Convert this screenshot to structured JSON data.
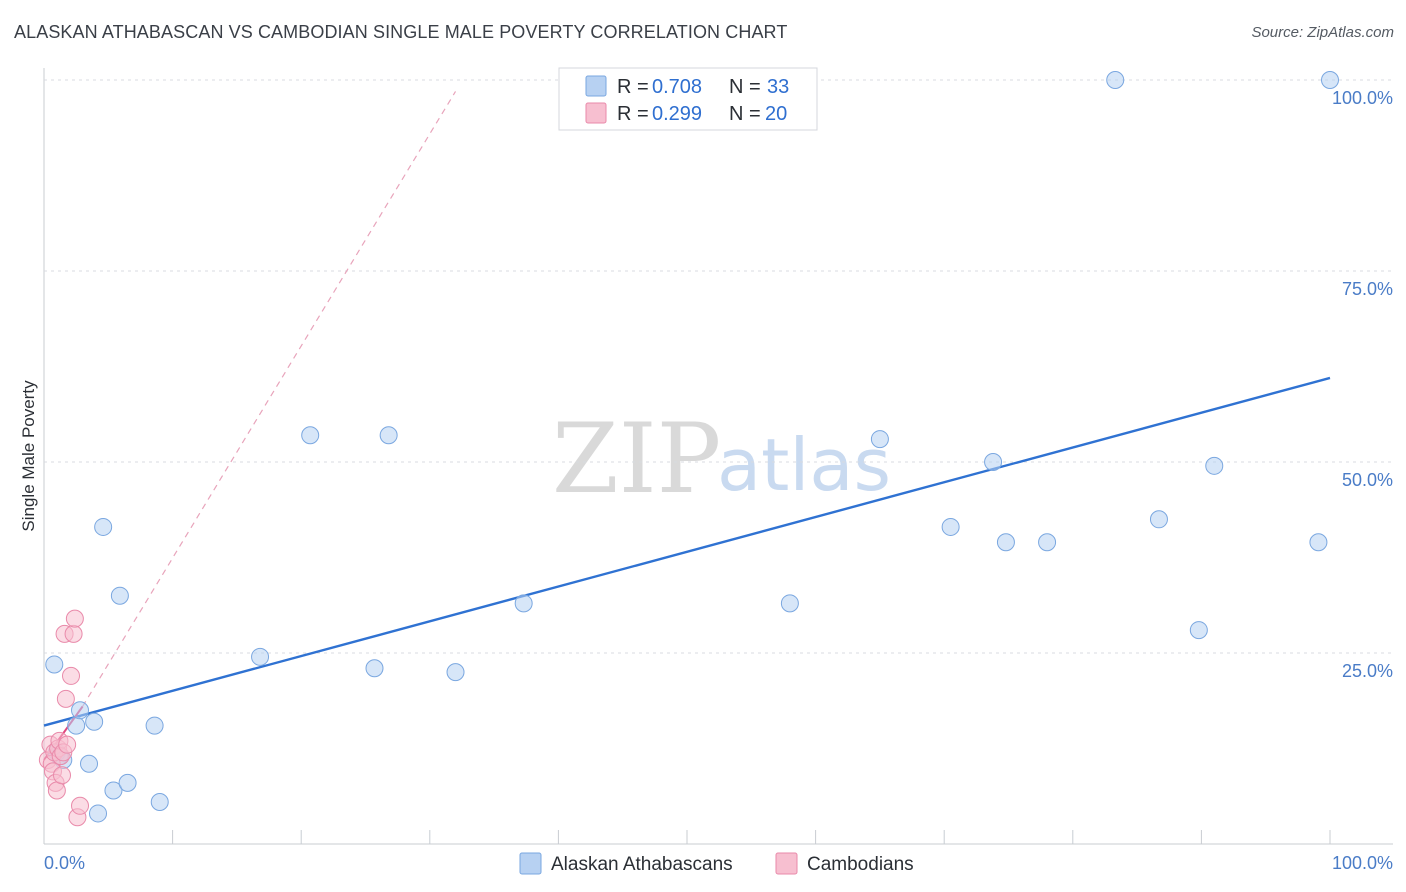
{
  "title": "ALASKAN ATHABASCAN VS CAMBODIAN SINGLE MALE POVERTY CORRELATION CHART",
  "source": "Source: ZipAtlas.com",
  "watermark": {
    "zip": "ZIP",
    "atlas": "atlas"
  },
  "legend": {
    "r_label": "R =",
    "n_label": "N =",
    "rows": [
      {
        "r": "0.708",
        "n": "33"
      },
      {
        "r": "0.299",
        "n": "20"
      }
    ]
  },
  "colors": {
    "blue_fill": "#b7d1f2",
    "blue_stroke": "#7aa7e0",
    "blue_line": "#2f72d2",
    "pink_fill": "#f7bfd0",
    "pink_stroke": "#e98aaa",
    "pink_line": "#e0477e",
    "tick_text": "#4a7cc7",
    "grid": "#d8dbe0"
  },
  "chart_data": {
    "type": "scatter",
    "title": "ALASKAN ATHABASCAN VS CAMBODIAN SINGLE MALE POVERTY CORRELATION CHART",
    "xlabel": "",
    "ylabel": "Single Male Poverty",
    "xlim": [
      0,
      100
    ],
    "ylim": [
      0,
      100
    ],
    "x_tick_labels": [
      "0.0%",
      "100.0%"
    ],
    "y_ticks": [
      {
        "value": 25,
        "label": "25.0%"
      },
      {
        "value": 50,
        "label": "50.0%"
      },
      {
        "value": 75,
        "label": "75.0%"
      },
      {
        "value": 100,
        "label": "100.0%"
      }
    ],
    "series": [
      {
        "name": "Alaskan Athabascans",
        "R": 0.708,
        "N": 33,
        "points": [
          [
            0.8,
            23.5
          ],
          [
            1.0,
            12.0
          ],
          [
            1.2,
            11.5
          ],
          [
            1.5,
            11.0
          ],
          [
            2.5,
            15.5
          ],
          [
            2.8,
            17.5
          ],
          [
            3.5,
            10.5
          ],
          [
            3.9,
            16.0
          ],
          [
            4.2,
            4.0
          ],
          [
            4.6,
            41.5
          ],
          [
            5.4,
            7.0
          ],
          [
            5.9,
            32.5
          ],
          [
            6.5,
            8.0
          ],
          [
            8.6,
            15.5
          ],
          [
            9.0,
            5.5
          ],
          [
            16.8,
            24.5
          ],
          [
            20.7,
            53.5
          ],
          [
            25.7,
            23.0
          ],
          [
            26.8,
            53.5
          ],
          [
            32.0,
            22.5
          ],
          [
            37.3,
            31.5
          ],
          [
            58.0,
            31.5
          ],
          [
            65.0,
            53.0
          ],
          [
            70.5,
            41.5
          ],
          [
            73.8,
            50.0
          ],
          [
            74.8,
            39.5
          ],
          [
            78.0,
            39.5
          ],
          [
            83.3,
            100.0
          ],
          [
            86.7,
            42.5
          ],
          [
            89.8,
            28.0
          ],
          [
            91.0,
            49.5
          ],
          [
            99.1,
            39.5
          ],
          [
            100.0,
            100.0
          ]
        ],
        "trend": {
          "x": [
            0,
            100
          ],
          "y": [
            15.5,
            61.0
          ]
        }
      },
      {
        "name": "Cambodians",
        "R": 0.299,
        "N": 20,
        "points": [
          [
            0.3,
            11.0
          ],
          [
            0.5,
            13.0
          ],
          [
            0.6,
            10.5
          ],
          [
            0.7,
            9.5
          ],
          [
            0.8,
            12.0
          ],
          [
            0.9,
            8.0
          ],
          [
            1.0,
            7.0
          ],
          [
            1.1,
            12.5
          ],
          [
            1.2,
            13.5
          ],
          [
            1.3,
            11.5
          ],
          [
            1.4,
            9.0
          ],
          [
            1.5,
            12.0
          ],
          [
            1.6,
            27.5
          ],
          [
            1.7,
            19.0
          ],
          [
            1.8,
            13.0
          ],
          [
            2.1,
            22.0
          ],
          [
            2.3,
            27.5
          ],
          [
            2.4,
            29.5
          ],
          [
            2.6,
            3.5
          ],
          [
            2.8,
            5.0
          ]
        ],
        "trend": {
          "x": [
            0,
            3
          ],
          "y": [
            11.0,
            18.0
          ]
        },
        "trend_extension": {
          "x": [
            3,
            32
          ],
          "y": [
            18.0,
            98.5
          ]
        }
      }
    ]
  }
}
